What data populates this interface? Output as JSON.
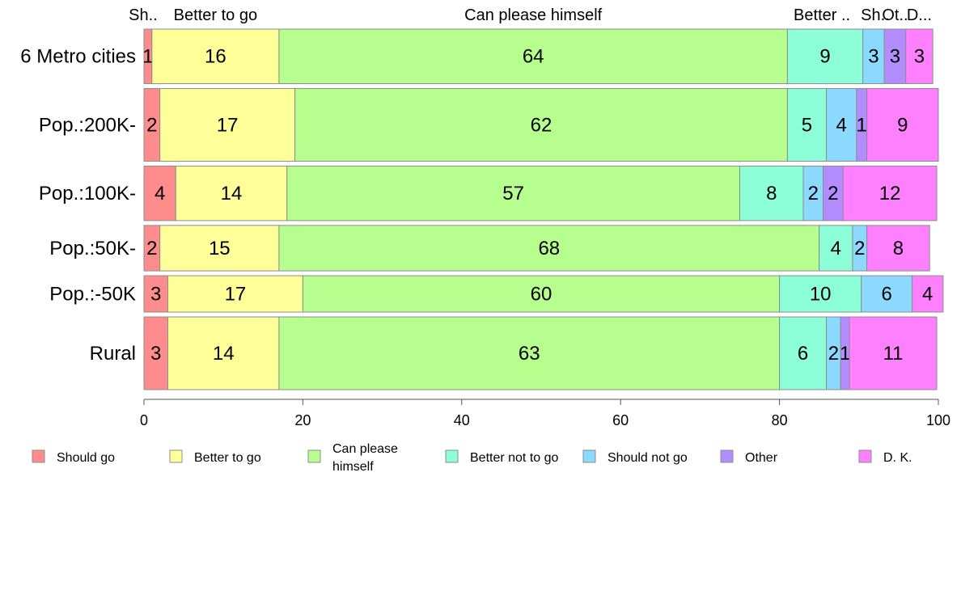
{
  "chart_data": {
    "type": "bar",
    "orientation": "horizontal",
    "stacked": true,
    "title": "",
    "xlabel": "",
    "ylabel": "",
    "xlim": [
      0,
      100
    ],
    "x_ticks": [
      0,
      20,
      40,
      60,
      80,
      100
    ],
    "grid": false,
    "legend_position": "bottom",
    "categories": [
      "6 Metro cities",
      "Pop.:200K-",
      "Pop.:100K-",
      "Pop.:50K-",
      "Pop.:-50K",
      "Rural"
    ],
    "bar_weights": [
      0.9,
      1.2,
      0.9,
      0.75,
      0.6,
      1.2
    ],
    "top_labels": [
      "Sh..",
      "Better to go",
      "Can please himself",
      "Better ..",
      "Sh..",
      "Ot..",
      "D..."
    ],
    "series": [
      {
        "name": "Should go",
        "color": "#FF8C8C",
        "values": [
          1,
          2,
          4,
          2,
          3,
          3
        ],
        "labels": [
          "1",
          "2",
          "4",
          "2",
          "3",
          "3"
        ]
      },
      {
        "name": "Better to go",
        "color": "#FFFF99",
        "values": [
          16,
          17,
          14,
          15,
          17,
          14
        ],
        "labels": [
          "16",
          "17",
          "14",
          "15",
          "17",
          "14"
        ]
      },
      {
        "name": "Can please himself",
        "color": "#B6FF8F",
        "values": [
          64,
          62,
          57,
          68,
          60,
          63
        ],
        "labels": [
          "64",
          "62",
          "57",
          "68",
          "60",
          "63"
        ]
      },
      {
        "name": "Better not to go",
        "color": "#8CFFD9",
        "values": [
          9.5,
          4.9,
          8,
          4.2,
          10.3,
          5.9
        ],
        "labels": [
          "9",
          "5",
          "8",
          "4",
          "10",
          "6"
        ]
      },
      {
        "name": "Should not go",
        "color": "#8CD9FF",
        "values": [
          2.7,
          3.8,
          2.5,
          1.8,
          6.4,
          1.8
        ],
        "labels": [
          "3",
          "4",
          "2",
          "2",
          "6",
          "2"
        ]
      },
      {
        "name": "Other",
        "color": "#B38CFF",
        "values": [
          2.7,
          1.3,
          2.5,
          0,
          0,
          1.1
        ],
        "labels": [
          "3",
          "1",
          "2",
          "",
          "",
          "1"
        ]
      },
      {
        "name": "D. K.",
        "color": "#FF80FF",
        "values": [
          3.4,
          9.0,
          11.8,
          7.9,
          3.9,
          11.0
        ],
        "labels": [
          "3",
          "9",
          "12",
          "8",
          "4",
          "11"
        ]
      }
    ],
    "legend": [
      "Should go",
      "Better to go",
      "Can please\nhimself",
      "Better not to go",
      "Should not go",
      "Other",
      "D. K."
    ]
  }
}
